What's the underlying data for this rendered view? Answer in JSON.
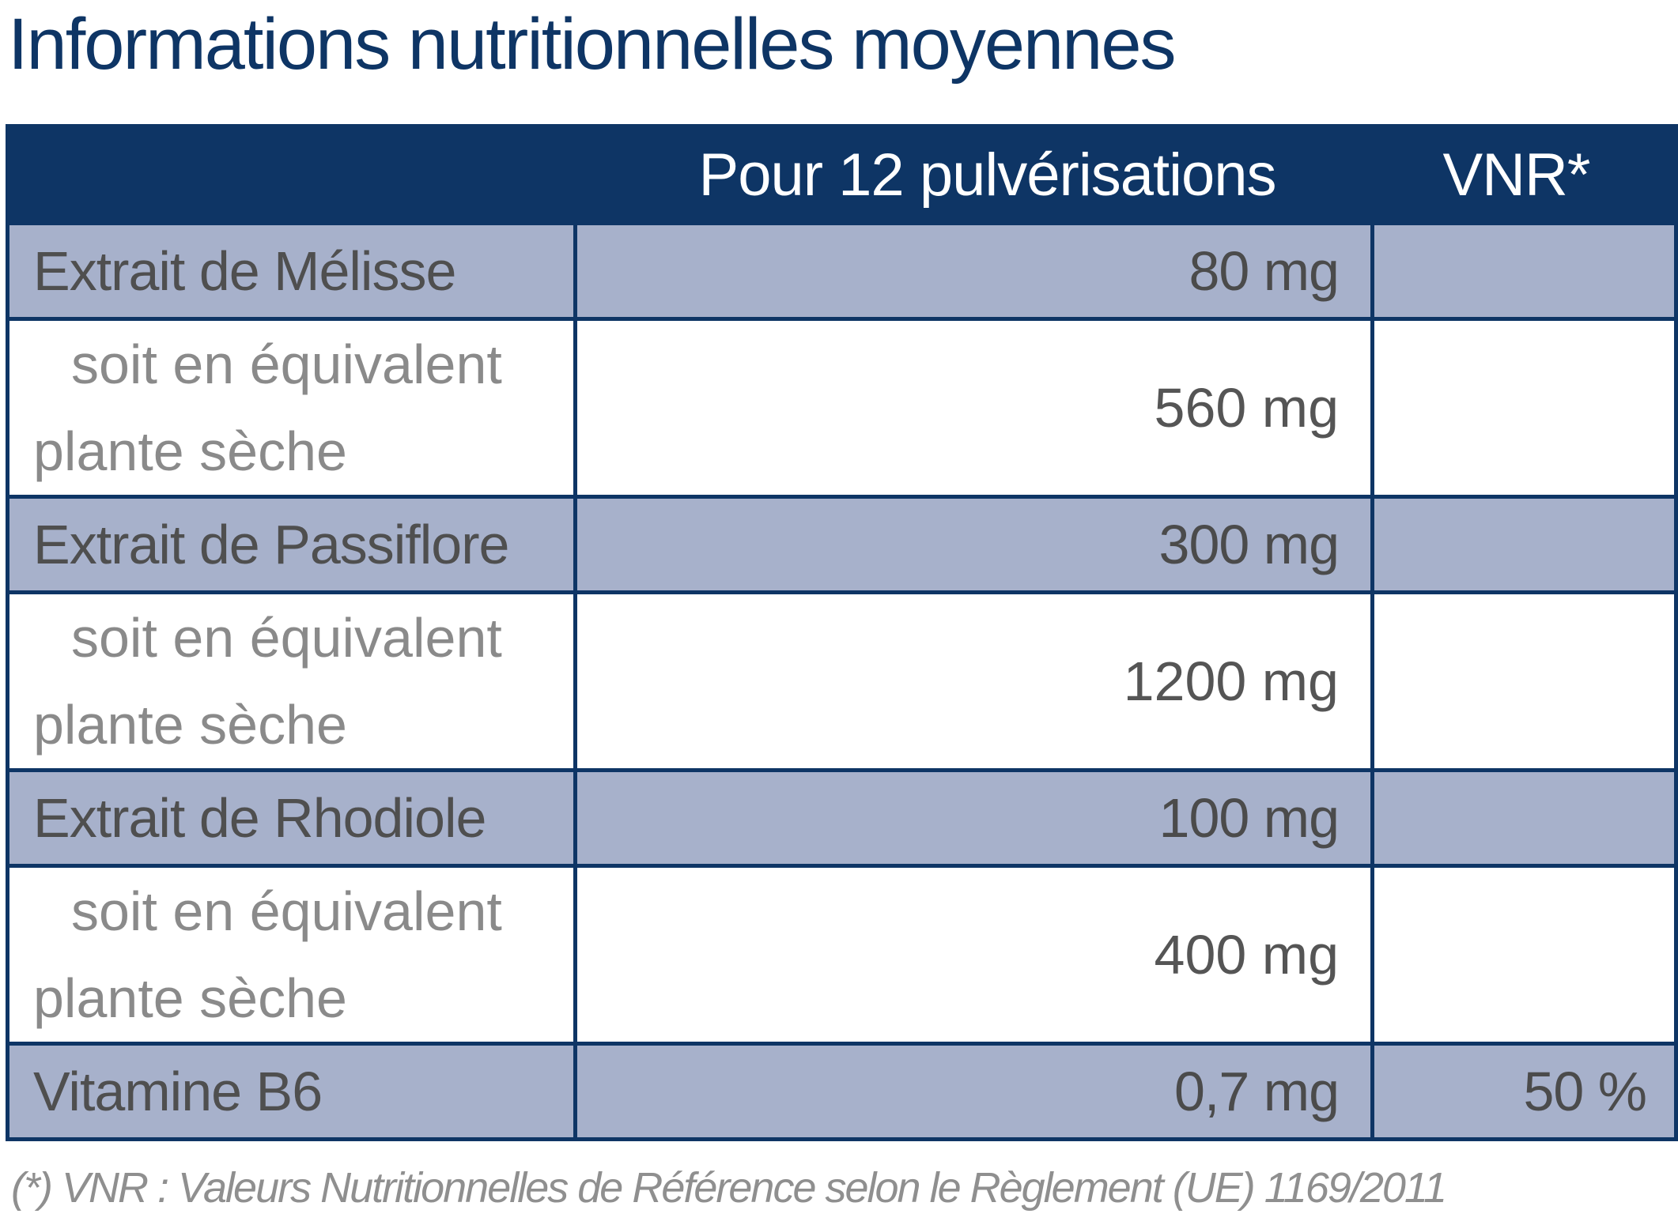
{
  "title": "Informations nutritionnelles moyennes",
  "table": {
    "headers": {
      "label": "",
      "per_serving": "Pour 12 pulvérisations",
      "vnr": "VNR*"
    },
    "rows": [
      {
        "type": "main",
        "label": "Extrait de Mélisse",
        "value": "80 mg",
        "vnr": ""
      },
      {
        "type": "sub",
        "label_line1": "soit en équivalent",
        "label_line2": "plante sèche",
        "value": "560 mg",
        "vnr": ""
      },
      {
        "type": "main",
        "label": "Extrait de Passiflore",
        "value": "300 mg",
        "vnr": ""
      },
      {
        "type": "sub",
        "label_line1": "soit en équivalent",
        "label_line2": "plante sèche",
        "value": "1200 mg",
        "vnr": ""
      },
      {
        "type": "main",
        "label": "Extrait de Rhodiole",
        "value": "100 mg",
        "vnr": ""
      },
      {
        "type": "sub",
        "label_line1": "soit en équivalent",
        "label_line2": "plante sèche",
        "value": "400 mg",
        "vnr": ""
      },
      {
        "type": "main",
        "label": "Vitamine B6",
        "value": "0,7 mg",
        "vnr": "50 %"
      }
    ]
  },
  "footnote": "(*) VNR : Valeurs Nutritionnelles de Référence selon le Règlement (UE) 1169/2011",
  "colors": {
    "header_bg": "#0e3565",
    "title_text": "#0e3565",
    "shaded_row_bg": "#a7b1cb",
    "plain_row_bg": "#ffffff",
    "body_text": "#555555",
    "sub_label_text": "#8a8a8a",
    "footnote_text": "#8f8f8f"
  }
}
